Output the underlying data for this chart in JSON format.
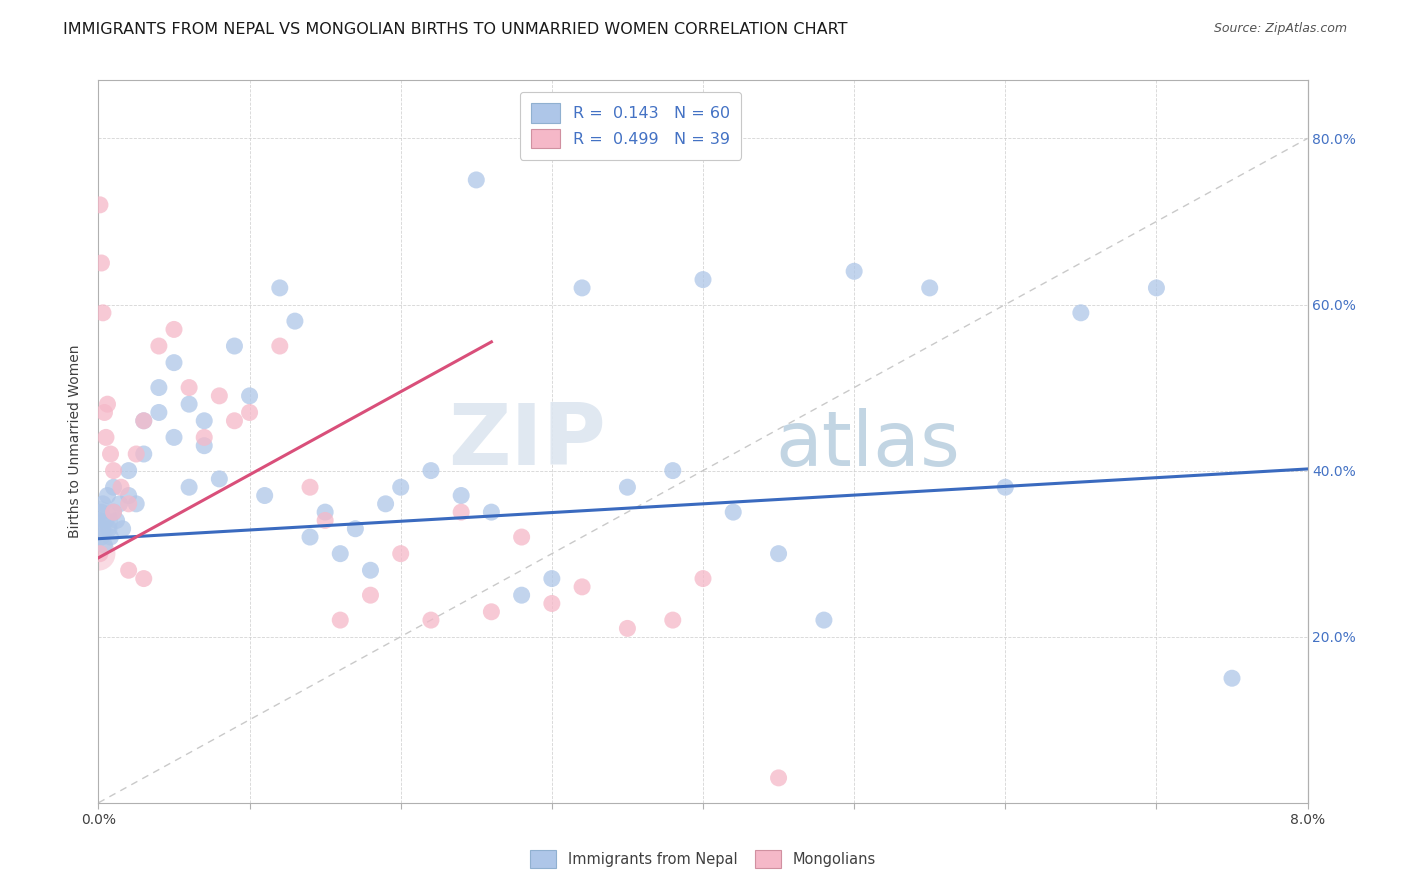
{
  "title": "IMMIGRANTS FROM NEPAL VS MONGOLIAN BIRTHS TO UNMARRIED WOMEN CORRELATION CHART",
  "source": "Source: ZipAtlas.com",
  "ylabel": "Births to Unmarried Women",
  "legend_line1": "R =  0.143   N = 60",
  "legend_line2": "R =  0.499   N = 39",
  "blue_color": "#aec6e8",
  "pink_color": "#f5b8c8",
  "blue_line_color": "#3a6abf",
  "pink_line_color": "#d94f7a",
  "diagonal_color": "#c0c0c0",
  "watermark_zip": "ZIP",
  "watermark_atlas": "atlas",
  "xlim": [
    0.0,
    0.08
  ],
  "ylim": [
    0.0,
    0.87
  ],
  "yticks": [
    0.2,
    0.4,
    0.6,
    0.8
  ],
  "xticks": [
    0.0,
    0.01,
    0.02,
    0.03,
    0.04,
    0.05,
    0.06,
    0.07,
    0.08
  ],
  "title_fontsize": 11.5,
  "source_fontsize": 9,
  "axis_label_fontsize": 10,
  "tick_fontsize": 10,
  "blue_trend_x": [
    0.0,
    0.08
  ],
  "blue_trend_y": [
    0.318,
    0.402
  ],
  "pink_trend_x": [
    0.0,
    0.026
  ],
  "pink_trend_y": [
    0.295,
    0.555
  ],
  "blue_scatter_x": [
    0.0001,
    0.0002,
    0.0002,
    0.0003,
    0.0003,
    0.0004,
    0.0005,
    0.0006,
    0.0007,
    0.0008,
    0.001,
    0.001,
    0.0012,
    0.0014,
    0.0016,
    0.002,
    0.002,
    0.0025,
    0.003,
    0.003,
    0.004,
    0.004,
    0.005,
    0.005,
    0.006,
    0.006,
    0.007,
    0.007,
    0.008,
    0.009,
    0.01,
    0.011,
    0.012,
    0.013,
    0.014,
    0.015,
    0.016,
    0.017,
    0.018,
    0.019,
    0.02,
    0.022,
    0.024,
    0.025,
    0.026,
    0.028,
    0.03,
    0.032,
    0.035,
    0.038,
    0.04,
    0.042,
    0.045,
    0.048,
    0.05,
    0.055,
    0.06,
    0.065,
    0.07,
    0.075
  ],
  "blue_scatter_y": [
    0.34,
    0.35,
    0.32,
    0.33,
    0.36,
    0.31,
    0.34,
    0.37,
    0.33,
    0.32,
    0.35,
    0.38,
    0.34,
    0.36,
    0.33,
    0.37,
    0.4,
    0.36,
    0.42,
    0.46,
    0.5,
    0.47,
    0.44,
    0.53,
    0.48,
    0.38,
    0.46,
    0.43,
    0.39,
    0.55,
    0.49,
    0.37,
    0.62,
    0.58,
    0.32,
    0.35,
    0.3,
    0.33,
    0.28,
    0.36,
    0.38,
    0.4,
    0.37,
    0.75,
    0.35,
    0.25,
    0.27,
    0.62,
    0.38,
    0.4,
    0.63,
    0.35,
    0.3,
    0.22,
    0.64,
    0.62,
    0.38,
    0.59,
    0.62,
    0.15
  ],
  "pink_scatter_x": [
    0.0001,
    0.0001,
    0.0002,
    0.0003,
    0.0004,
    0.0005,
    0.0006,
    0.0008,
    0.001,
    0.001,
    0.0015,
    0.002,
    0.002,
    0.0025,
    0.003,
    0.003,
    0.004,
    0.005,
    0.006,
    0.007,
    0.008,
    0.009,
    0.01,
    0.012,
    0.014,
    0.015,
    0.016,
    0.018,
    0.02,
    0.022,
    0.024,
    0.026,
    0.028,
    0.03,
    0.032,
    0.035,
    0.038,
    0.04,
    0.045
  ],
  "pink_scatter_y": [
    0.72,
    0.3,
    0.65,
    0.59,
    0.47,
    0.44,
    0.48,
    0.42,
    0.4,
    0.35,
    0.38,
    0.36,
    0.28,
    0.42,
    0.46,
    0.27,
    0.55,
    0.57,
    0.5,
    0.44,
    0.49,
    0.46,
    0.47,
    0.55,
    0.38,
    0.34,
    0.22,
    0.25,
    0.3,
    0.22,
    0.35,
    0.23,
    0.32,
    0.24,
    0.26,
    0.21,
    0.22,
    0.27,
    0.03
  ]
}
